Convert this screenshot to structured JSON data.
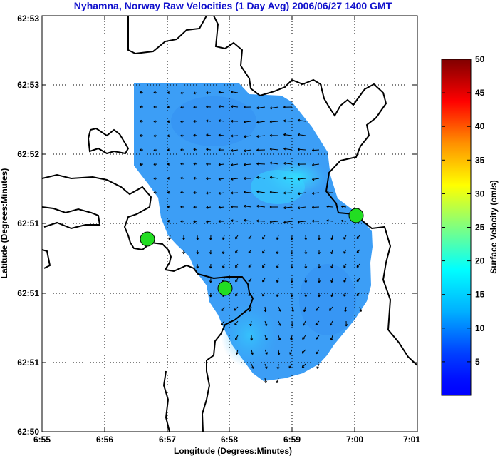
{
  "chart_data": {
    "type": "heatmap",
    "title": "Nyhamna, Norway Raw Velocities (1 Day Avg) 2006/06/27 1400 GMT",
    "xlabel": "Longitude (Degrees:Minutes)",
    "ylabel": "Latitude (Degrees:Minutes)",
    "x_ticks": [
      "6:55",
      "6:56",
      "6:57",
      "6:58",
      "6:59",
      "7:00",
      "7:01"
    ],
    "y_ticks": [
      "62:53",
      "62:53",
      "62:52",
      "62:51",
      "62:51",
      "62:51",
      "62:50"
    ],
    "x_range_minutes": [
      55,
      61
    ],
    "grid": true,
    "colorbar": {
      "label": "Surface Velocity (cm/s)",
      "range": [
        0,
        50
      ],
      "ticks": [
        "5",
        "10",
        "15",
        "20",
        "25",
        "30",
        "35",
        "40",
        "45",
        "50"
      ],
      "colormap": "jet"
    },
    "velocity_range_cm_s": [
      2,
      12
    ],
    "mean_flow_direction": "westward (north part), southward (south part)",
    "station_markers": [
      {
        "lon": "6:56.7",
        "lat_fraction": 0.56
      },
      {
        "lon": "6:57.9",
        "lat_fraction": 0.41
      },
      {
        "lon": "7:00.0",
        "lat_fraction": 0.62
      }
    ],
    "station_color": "#22dd22"
  }
}
